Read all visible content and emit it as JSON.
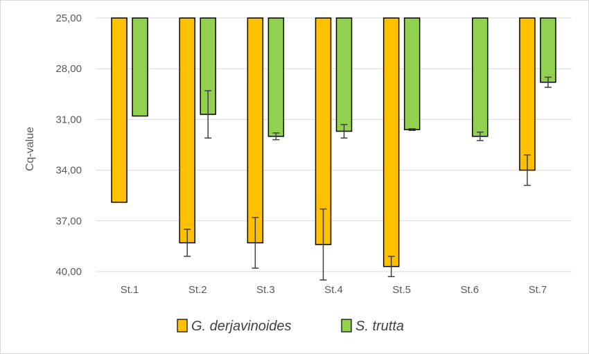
{
  "chart_data": {
    "type": "bar",
    "ylabel": "Cq-value",
    "xlabel": "",
    "y_axis_reversed": true,
    "ylim": [
      25,
      40
    ],
    "yticks": [
      "25,00",
      "28,00",
      "31,00",
      "34,00",
      "37,00",
      "40,00"
    ],
    "ytick_values": [
      25,
      28,
      31,
      34,
      37,
      40
    ],
    "categories": [
      "St.1",
      "St.2",
      "St.3",
      "St.4",
      "St.5",
      "St.6",
      "St.7"
    ],
    "grid": true,
    "legend_position": "bottom",
    "series": [
      {
        "name": "G. derjavinoides",
        "color": "#ffc000",
        "values": [
          35.9,
          38.3,
          38.3,
          38.4,
          39.7,
          null,
          34.0
        ],
        "errors": [
          0,
          0.8,
          1.5,
          2.1,
          0.6,
          null,
          0.9
        ]
      },
      {
        "name": "S. trutta",
        "color": "#92d050",
        "values": [
          30.8,
          30.7,
          32.0,
          31.7,
          31.6,
          32.0,
          28.8
        ],
        "errors": [
          0,
          1.4,
          0.2,
          0.4,
          0.05,
          0.25,
          0.3
        ]
      }
    ]
  }
}
